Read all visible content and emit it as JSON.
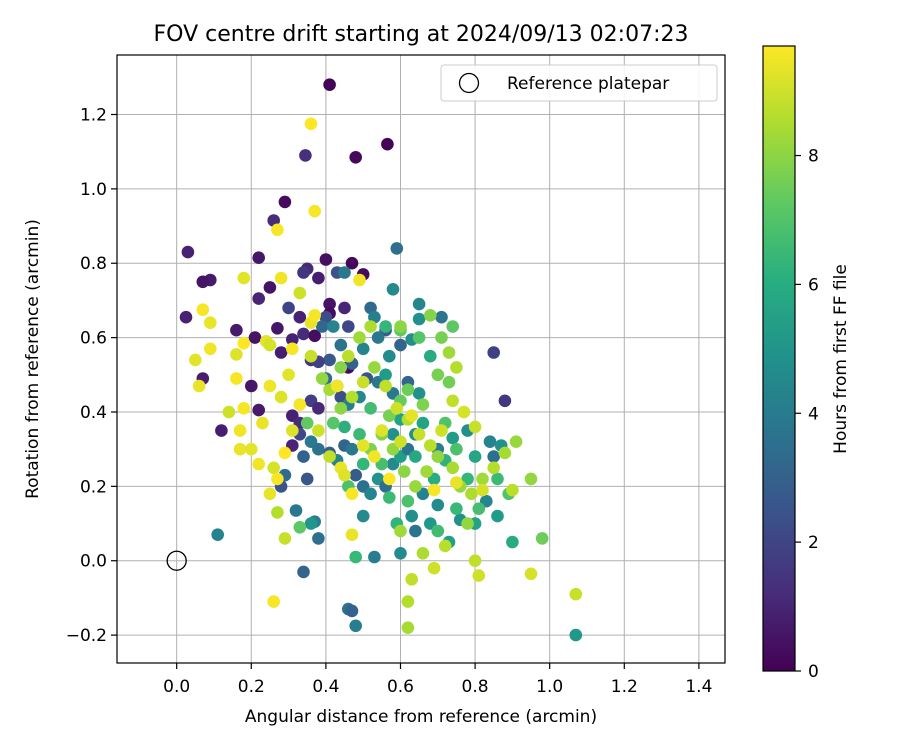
{
  "chart_data": {
    "type": "scatter",
    "title": "FOV centre drift starting at 2024/09/13 02:07:23",
    "xlabel": "Angular distance from reference (arcmin)",
    "ylabel": "Rotation from reference (arcmin)",
    "xlim": [
      -0.16,
      1.47
    ],
    "ylim": [
      -0.275,
      1.36
    ],
    "xticks": [
      0.0,
      0.2,
      0.4,
      0.6,
      0.8,
      1.0,
      1.2,
      1.4
    ],
    "yticks": [
      -0.2,
      0.0,
      0.2,
      0.4,
      0.6,
      0.8,
      1.0,
      1.2
    ],
    "xtick_labels": [
      "0.0",
      "0.2",
      "0.4",
      "0.6",
      "0.8",
      "1.0",
      "1.2",
      "1.4"
    ],
    "ytick_labels": [
      "−0.2",
      "0.0",
      "0.2",
      "0.4",
      "0.6",
      "0.8",
      "1.0",
      "1.2"
    ],
    "grid": true,
    "legend": {
      "position": "top-right",
      "entries": [
        "Reference platepar"
      ]
    },
    "reference_point": {
      "x": 0.0,
      "y": 0.0
    },
    "colorbar": {
      "label": "Hours from first FF file",
      "colormap": "viridis",
      "range": [
        0,
        9.7
      ],
      "ticks": [
        0,
        2,
        4,
        6,
        8
      ],
      "tick_labels": [
        "0",
        "2",
        "4",
        "6",
        "8"
      ]
    },
    "points": [
      [
        0.41,
        1.28,
        0.1
      ],
      [
        0.565,
        1.12,
        0.1
      ],
      [
        0.48,
        1.085,
        0.2
      ],
      [
        0.345,
        1.09,
        1.3
      ],
      [
        0.29,
        0.965,
        0.3
      ],
      [
        0.26,
        0.915,
        1.2
      ],
      [
        0.03,
        0.83,
        0.9
      ],
      [
        0.09,
        0.755,
        0.7
      ],
      [
        0.07,
        0.75,
        0.5
      ],
      [
        0.22,
        0.815,
        0.6
      ],
      [
        0.25,
        0.735,
        0.5
      ],
      [
        0.22,
        0.705,
        1.0
      ],
      [
        0.4,
        0.81,
        0.4
      ],
      [
        0.47,
        0.8,
        0.2
      ],
      [
        0.35,
        0.785,
        1.1
      ],
      [
        0.34,
        0.775,
        1.5
      ],
      [
        0.38,
        0.76,
        0.8
      ],
      [
        0.43,
        0.775,
        2.5
      ],
      [
        0.5,
        0.77,
        0.3
      ],
      [
        0.41,
        0.69,
        0.5
      ],
      [
        0.45,
        0.68,
        1.0
      ],
      [
        0.41,
        0.665,
        0.3
      ],
      [
        0.3,
        0.68,
        2.0
      ],
      [
        0.025,
        0.655,
        0.9
      ],
      [
        0.16,
        0.62,
        0.7
      ],
      [
        0.27,
        0.625,
        0.6
      ],
      [
        0.33,
        0.655,
        0.9
      ],
      [
        0.34,
        0.61,
        1.2
      ],
      [
        0.37,
        0.605,
        0.4
      ],
      [
        0.4,
        0.655,
        2.3
      ],
      [
        0.46,
        0.63,
        2.1
      ],
      [
        0.21,
        0.6,
        0.5
      ],
      [
        0.28,
        0.56,
        0.8
      ],
      [
        0.31,
        0.595,
        0.9
      ],
      [
        0.36,
        0.54,
        1.6
      ],
      [
        0.46,
        0.52,
        0.3
      ],
      [
        0.07,
        0.49,
        0.8
      ],
      [
        0.12,
        0.35,
        0.8
      ],
      [
        0.2,
        0.47,
        0.6
      ],
      [
        0.22,
        0.405,
        0.7
      ],
      [
        0.31,
        0.39,
        0.9
      ],
      [
        0.33,
        0.37,
        1.2
      ],
      [
        0.31,
        0.31,
        1.0
      ],
      [
        0.36,
        0.43,
        1.8
      ],
      [
        0.38,
        0.41,
        1.1
      ],
      [
        0.85,
        0.56,
        1.9
      ],
      [
        0.88,
        0.43,
        1.6
      ],
      [
        0.59,
        0.84,
        3.5
      ],
      [
        0.45,
        0.775,
        3.9
      ],
      [
        0.58,
        0.73,
        4.6
      ],
      [
        0.52,
        0.68,
        3.3
      ],
      [
        0.53,
        0.655,
        4.2
      ],
      [
        0.65,
        0.69,
        4.5
      ],
      [
        0.71,
        0.655,
        3.8
      ],
      [
        0.56,
        0.62,
        2.8
      ],
      [
        0.6,
        0.58,
        3.1
      ],
      [
        0.63,
        0.595,
        4.8
      ],
      [
        0.5,
        0.57,
        4.4
      ],
      [
        0.47,
        0.53,
        3.0
      ],
      [
        0.41,
        0.54,
        2.7
      ],
      [
        0.38,
        0.535,
        1.9
      ],
      [
        0.4,
        0.49,
        3.4
      ],
      [
        0.43,
        0.47,
        3.7
      ],
      [
        0.44,
        0.44,
        2.3
      ],
      [
        0.46,
        0.42,
        4.2
      ],
      [
        0.49,
        0.44,
        4.5
      ],
      [
        0.51,
        0.49,
        2.6
      ],
      [
        0.54,
        0.48,
        3.9
      ],
      [
        0.56,
        0.5,
        5.3
      ],
      [
        0.58,
        0.45,
        4.0
      ],
      [
        0.62,
        0.48,
        3.2
      ],
      [
        0.65,
        0.45,
        4.9
      ],
      [
        0.33,
        0.34,
        2.1
      ],
      [
        0.34,
        0.28,
        3.0
      ],
      [
        0.36,
        0.32,
        4.0
      ],
      [
        0.38,
        0.3,
        3.6
      ],
      [
        0.41,
        0.29,
        2.9
      ],
      [
        0.43,
        0.27,
        4.3
      ],
      [
        0.45,
        0.31,
        3.1
      ],
      [
        0.47,
        0.3,
        3.9
      ],
      [
        0.48,
        0.23,
        2.8
      ],
      [
        0.5,
        0.2,
        3.6
      ],
      [
        0.52,
        0.18,
        4.4
      ],
      [
        0.54,
        0.22,
        5.0
      ],
      [
        0.56,
        0.2,
        3.4
      ],
      [
        0.58,
        0.26,
        4.6
      ],
      [
        0.6,
        0.28,
        5.4
      ],
      [
        0.62,
        0.3,
        3.8
      ],
      [
        0.64,
        0.34,
        4.7
      ],
      [
        0.66,
        0.37,
        5.6
      ],
      [
        0.7,
        0.3,
        4.1
      ],
      [
        0.74,
        0.33,
        5.3
      ],
      [
        0.78,
        0.35,
        4.8
      ],
      [
        0.8,
        0.28,
        5.7
      ],
      [
        0.84,
        0.32,
        4.4
      ],
      [
        0.85,
        0.28,
        3.5
      ],
      [
        0.87,
        0.31,
        4.9
      ],
      [
        0.28,
        0.2,
        2.5
      ],
      [
        0.29,
        0.23,
        3.3
      ],
      [
        0.32,
        0.135,
        3.9
      ],
      [
        0.35,
        0.22,
        2.6
      ],
      [
        0.37,
        0.105,
        4.1
      ],
      [
        0.38,
        0.06,
        3.5
      ],
      [
        0.34,
        -0.03,
        3.1
      ],
      [
        0.36,
        0.1,
        5.1
      ],
      [
        0.11,
        0.07,
        4.3
      ],
      [
        0.46,
        -0.13,
        3.6
      ],
      [
        0.47,
        -0.135,
        3.0
      ],
      [
        0.48,
        -0.175,
        4.2
      ],
      [
        0.5,
        0.12,
        4.6
      ],
      [
        0.53,
        0.01,
        4.1
      ],
      [
        0.6,
        0.02,
        4.6
      ],
      [
        0.63,
        0.12,
        4.8
      ],
      [
        0.64,
        0.08,
        3.7
      ],
      [
        0.66,
        0.18,
        4.3
      ],
      [
        0.68,
        0.1,
        5.2
      ],
      [
        0.7,
        0.15,
        4.6
      ],
      [
        0.73,
        0.05,
        5.4
      ],
      [
        0.76,
        0.11,
        4.9
      ],
      [
        0.8,
        0.1,
        5.6
      ],
      [
        0.83,
        0.16,
        4.4
      ],
      [
        0.86,
        0.12,
        5.3
      ],
      [
        0.9,
        0.05,
        5.9
      ],
      [
        1.07,
        -0.2,
        5.2
      ],
      [
        0.39,
        0.63,
        3.2
      ],
      [
        0.42,
        0.63,
        4.4
      ],
      [
        0.44,
        0.58,
        3.7
      ],
      [
        0.54,
        0.6,
        3.9
      ],
      [
        0.57,
        0.55,
        4.7
      ],
      [
        0.65,
        0.65,
        4.9
      ],
      [
        0.68,
        0.55,
        5.9
      ],
      [
        0.6,
        0.38,
        5.6
      ],
      [
        0.58,
        0.34,
        4.9
      ],
      [
        0.64,
        0.28,
        5.8
      ],
      [
        0.69,
        0.22,
        6.0
      ],
      [
        0.72,
        0.27,
        6.2
      ],
      [
        0.45,
        0.36,
        6.1
      ],
      [
        0.49,
        0.34,
        6.6
      ],
      [
        0.52,
        0.41,
        6.7
      ],
      [
        0.5,
        0.26,
        6.4
      ],
      [
        0.46,
        0.2,
        6.9
      ],
      [
        0.55,
        0.26,
        6.8
      ],
      [
        0.57,
        0.17,
        6.6
      ],
      [
        0.59,
        0.1,
        6.3
      ],
      [
        0.62,
        0.16,
        6.9
      ],
      [
        0.7,
        0.08,
        6.7
      ],
      [
        0.75,
        0.14,
        6.5
      ],
      [
        0.78,
        0.22,
        6.4
      ],
      [
        0.81,
        0.14,
        6.8
      ],
      [
        0.86,
        0.22,
        6.6
      ],
      [
        0.89,
        0.18,
        7.0
      ],
      [
        0.33,
        0.09,
        7.2
      ],
      [
        0.35,
        0.37,
        7.3
      ],
      [
        0.42,
        0.37,
        7.1
      ],
      [
        0.48,
        0.01,
        6.5
      ],
      [
        0.56,
        0.63,
        6.4
      ],
      [
        0.6,
        0.62,
        7.2
      ],
      [
        0.65,
        0.6,
        7.1
      ],
      [
        0.72,
        0.37,
        7.0
      ],
      [
        0.75,
        0.3,
        6.9
      ],
      [
        0.73,
        0.48,
        7.6
      ],
      [
        0.7,
        0.5,
        7.7
      ],
      [
        0.66,
        0.42,
        7.8
      ],
      [
        0.62,
        0.46,
        7.5
      ],
      [
        0.6,
        0.43,
        7.4
      ],
      [
        0.57,
        0.39,
        7.7
      ],
      [
        0.55,
        0.34,
        7.9
      ],
      [
        0.52,
        0.3,
        7.8
      ],
      [
        0.58,
        0.3,
        8.1
      ],
      [
        0.61,
        0.24,
        8.0
      ],
      [
        0.64,
        0.2,
        8.2
      ],
      [
        0.67,
        0.24,
        8.3
      ],
      [
        0.7,
        0.28,
        8.1
      ],
      [
        0.74,
        0.25,
        8.4
      ],
      [
        0.76,
        0.2,
        8.2
      ],
      [
        0.79,
        0.18,
        8.5
      ],
      [
        0.82,
        0.22,
        8.3
      ],
      [
        0.85,
        0.25,
        8.6
      ],
      [
        0.88,
        0.29,
        8.4
      ],
      [
        0.91,
        0.32,
        8.2
      ],
      [
        0.95,
        0.22,
        8.1
      ],
      [
        0.98,
        0.06,
        7.5
      ],
      [
        0.9,
        0.19,
        8.7
      ],
      [
        0.68,
        0.66,
        7.9
      ],
      [
        0.73,
        0.56,
        8.3
      ],
      [
        0.75,
        0.52,
        8.6
      ],
      [
        0.71,
        0.6,
        7.7
      ],
      [
        0.74,
        0.63,
        7.2
      ],
      [
        0.6,
        0.63,
        8.0
      ],
      [
        0.52,
        0.63,
        8.5
      ],
      [
        0.49,
        0.6,
        8.3
      ],
      [
        0.46,
        0.55,
        8.7
      ],
      [
        0.44,
        0.52,
        7.9
      ],
      [
        0.41,
        0.46,
        8.4
      ],
      [
        0.39,
        0.49,
        8.1
      ],
      [
        0.36,
        0.55,
        8.9
      ],
      [
        0.44,
        0.41,
        8.0
      ],
      [
        0.47,
        0.44,
        8.6
      ],
      [
        0.5,
        0.48,
        8.9
      ],
      [
        0.53,
        0.52,
        8.2
      ],
      [
        0.56,
        0.47,
        8.8
      ],
      [
        0.59,
        0.41,
        9.0
      ],
      [
        0.62,
        0.38,
        8.6
      ],
      [
        0.65,
        0.34,
        8.9
      ],
      [
        0.68,
        0.31,
        8.7
      ],
      [
        0.71,
        0.35,
        9.0
      ],
      [
        0.74,
        0.43,
        8.8
      ],
      [
        0.77,
        0.4,
        9.1
      ],
      [
        0.8,
        0.36,
        8.9
      ],
      [
        0.6,
        0.08,
        8.3
      ],
      [
        0.62,
        -0.11,
        8.6
      ],
      [
        0.63,
        -0.05,
        8.8
      ],
      [
        0.62,
        -0.18,
        8.4
      ],
      [
        0.66,
        0.02,
        8.5
      ],
      [
        0.69,
        -0.02,
        9.0
      ],
      [
        0.72,
        0.04,
        8.7
      ],
      [
        0.78,
        0.1,
        8.1
      ],
      [
        0.81,
        -0.04,
        9.0
      ],
      [
        0.8,
        0.0,
        8.8
      ],
      [
        0.95,
        -0.035,
        9.1
      ],
      [
        1.07,
        -0.09,
        8.9
      ],
      [
        0.3,
        0.5,
        9.3
      ],
      [
        0.28,
        0.44,
        9.2
      ],
      [
        0.25,
        0.47,
        9.5
      ],
      [
        0.23,
        0.37,
        9.4
      ],
      [
        0.18,
        0.41,
        9.6
      ],
      [
        0.2,
        0.3,
        9.3
      ],
      [
        0.22,
        0.26,
        9.5
      ],
      [
        0.26,
        0.25,
        9.1
      ],
      [
        0.27,
        0.22,
        9.6
      ],
      [
        0.25,
        0.18,
        9.4
      ],
      [
        0.29,
        0.29,
        9.7
      ],
      [
        0.31,
        0.35,
        9.2
      ],
      [
        0.33,
        0.42,
        9.6
      ],
      [
        0.36,
        0.64,
        9.4
      ],
      [
        0.37,
        0.66,
        9.6
      ],
      [
        0.43,
        0.47,
        9.5
      ],
      [
        0.44,
        0.25,
        9.4
      ],
      [
        0.45,
        0.23,
        9.2
      ],
      [
        0.47,
        0.18,
        9.6
      ],
      [
        0.5,
        0.31,
        9.3
      ],
      [
        0.53,
        0.28,
        9.5
      ],
      [
        0.57,
        0.22,
        9.7
      ],
      [
        0.47,
        0.07,
        9.4
      ],
      [
        0.37,
        0.94,
        9.6
      ],
      [
        0.36,
        1.175,
        9.7
      ],
      [
        0.27,
        0.89,
        9.6
      ],
      [
        0.49,
        0.755,
        9.5
      ],
      [
        0.18,
        0.76,
        9.3
      ],
      [
        0.07,
        0.675,
        9.6
      ],
      [
        0.09,
        0.64,
        9.4
      ],
      [
        0.05,
        0.54,
        9.3
      ],
      [
        0.09,
        0.57,
        9.5
      ],
      [
        0.16,
        0.555,
        9.2
      ],
      [
        0.18,
        0.585,
        9.7
      ],
      [
        0.24,
        0.59,
        9.3
      ],
      [
        0.25,
        0.58,
        9.1
      ],
      [
        0.31,
        0.57,
        9.6
      ],
      [
        0.33,
        0.72,
        9.0
      ],
      [
        0.28,
        0.76,
        9.5
      ],
      [
        0.16,
        0.49,
        9.6
      ],
      [
        0.14,
        0.4,
        9.0
      ],
      [
        0.17,
        0.35,
        9.5
      ],
      [
        0.06,
        0.47,
        9.4
      ],
      [
        0.38,
        0.35,
        9.0
      ],
      [
        0.41,
        0.28,
        8.8
      ],
      [
        0.27,
        0.13,
        8.6
      ],
      [
        0.29,
        0.06,
        8.9
      ],
      [
        0.26,
        -0.11,
        9.6
      ],
      [
        0.17,
        0.3,
        9.4
      ],
      [
        0.55,
        0.35,
        9.2
      ],
      [
        0.6,
        0.32,
        9.0
      ],
      [
        0.63,
        0.39,
        9.3
      ],
      [
        0.69,
        0.19,
        9.6
      ],
      [
        0.75,
        0.21,
        9.4
      ],
      [
        0.82,
        0.19,
        9.1
      ]
    ]
  }
}
